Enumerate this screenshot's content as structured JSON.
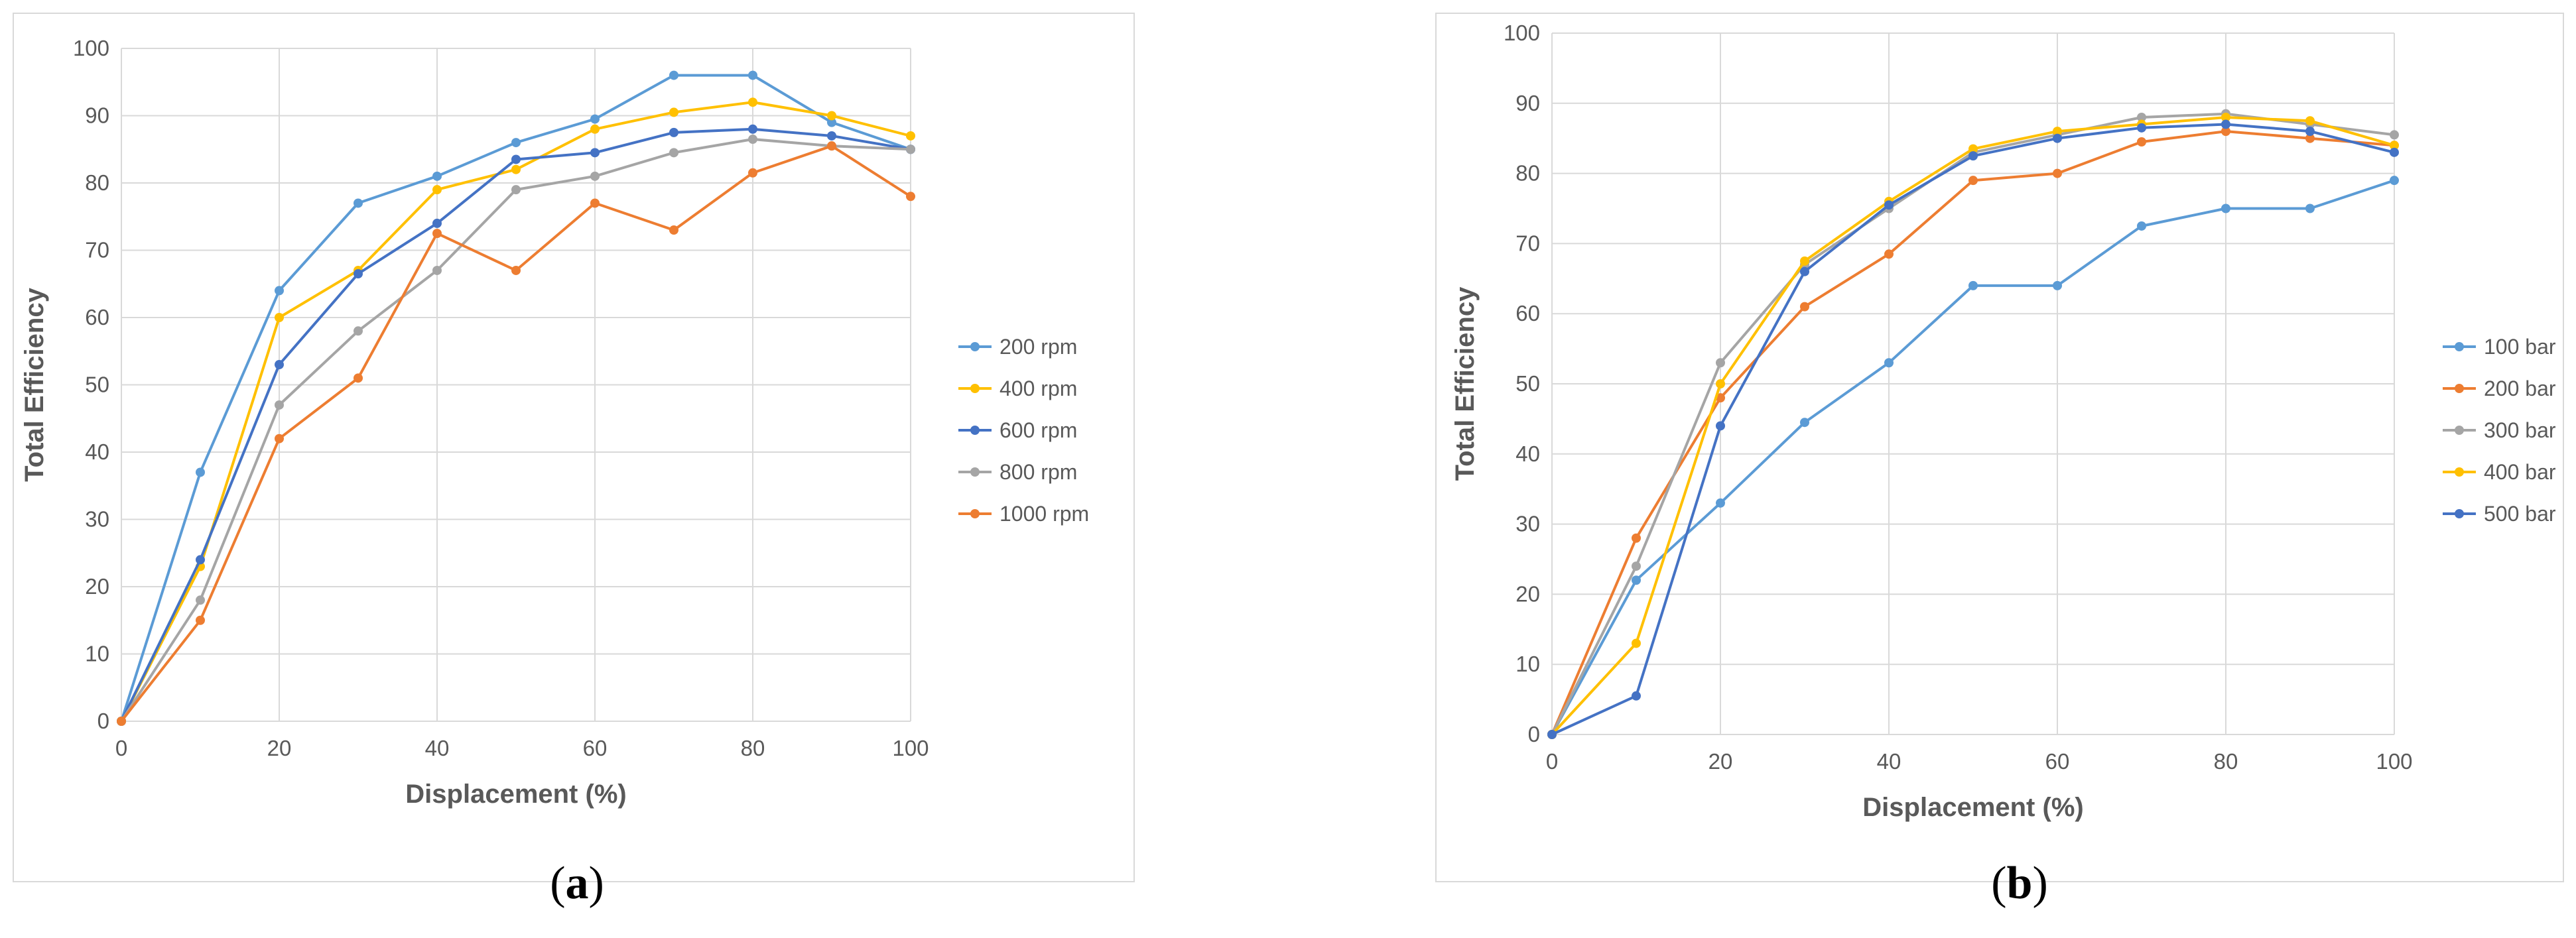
{
  "chart_data": [
    {
      "type": "line",
      "panel_label": "a",
      "xlabel": "Displacement (%)",
      "ylabel": "Total Efficiency",
      "xlim": [
        0,
        100
      ],
      "ylim": [
        0,
        100
      ],
      "x_ticks": [
        "0",
        "20",
        "40",
        "60",
        "80",
        "100"
      ],
      "y_ticks": [
        "0",
        "10",
        "20",
        "30",
        "40",
        "50",
        "60",
        "70",
        "80",
        "90",
        "100"
      ],
      "grid": true,
      "legend_position": "right",
      "x": [
        0,
        10,
        20,
        30,
        40,
        50,
        60,
        70,
        80,
        90,
        100
      ],
      "series": [
        {
          "name": "200 rpm",
          "color": "#5B9BD5",
          "values": [
            0,
            37,
            64,
            77,
            81,
            86,
            89.5,
            96,
            96,
            89,
            85
          ]
        },
        {
          "name": "400 rpm",
          "color": "#FFC000",
          "values": [
            0,
            23,
            60,
            67,
            79,
            82,
            88,
            90.5,
            92,
            90,
            87
          ]
        },
        {
          "name": "600 rpm",
          "color": "#4472C4",
          "values": [
            0,
            24,
            53,
            66.5,
            74,
            83.5,
            84.5,
            87.5,
            88,
            87,
            85
          ]
        },
        {
          "name": "800 rpm",
          "color": "#A5A5A5",
          "values": [
            0,
            18,
            47,
            58,
            67,
            79,
            81,
            84.5,
            86.5,
            85.5,
            85
          ]
        },
        {
          "name": "1000 rpm",
          "color": "#ED7D31",
          "values": [
            0,
            15,
            42,
            51,
            72.5,
            67,
            77,
            73,
            81.5,
            85.5,
            78
          ]
        }
      ]
    },
    {
      "type": "line",
      "panel_label": "b",
      "xlabel": "Displacement (%)",
      "ylabel": "Total Efficiency",
      "xlim": [
        0,
        100
      ],
      "ylim": [
        0,
        100
      ],
      "x_ticks": [
        "0",
        "20",
        "40",
        "60",
        "80",
        "100"
      ],
      "y_ticks": [
        "0",
        "10",
        "20",
        "30",
        "40",
        "50",
        "60",
        "70",
        "80",
        "90",
        "100"
      ],
      "grid": true,
      "legend_position": "right",
      "x": [
        0,
        10,
        20,
        30,
        40,
        50,
        60,
        70,
        80,
        90,
        100
      ],
      "series": [
        {
          "name": "100 bar",
          "color": "#5B9BD5",
          "values": [
            0,
            22,
            33,
            44.5,
            53,
            64,
            64,
            72.5,
            75,
            75,
            79
          ]
        },
        {
          "name": "200 bar",
          "color": "#ED7D31",
          "values": [
            0,
            28,
            48,
            61,
            68.5,
            79,
            80,
            84.5,
            86,
            85,
            84
          ]
        },
        {
          "name": "300 bar",
          "color": "#A5A5A5",
          "values": [
            0,
            24,
            53,
            67,
            75,
            83,
            85.5,
            88,
            88.5,
            87,
            85.5
          ]
        },
        {
          "name": "400 bar",
          "color": "#FFC000",
          "values": [
            0,
            13,
            50,
            67.5,
            76,
            83.5,
            86,
            87,
            88,
            87.5,
            84
          ]
        },
        {
          "name": "500 bar",
          "color": "#4472C4",
          "values": [
            0,
            5.5,
            44,
            66,
            75.5,
            82.5,
            85,
            86.5,
            87,
            86,
            83
          ]
        }
      ]
    }
  ]
}
